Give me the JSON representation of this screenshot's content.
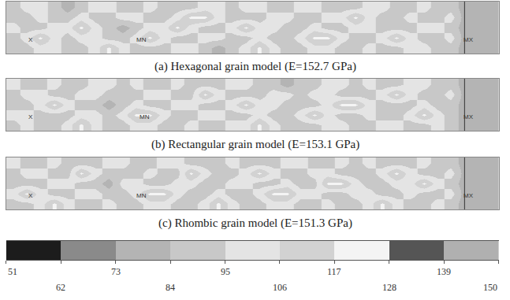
{
  "chart_data": [
    {
      "type": "heatmap",
      "title": "(a) Hexagonal grain model (E=152.7 GPa)",
      "xlim": [
        0,
        36
      ],
      "ylim": [
        0,
        5
      ],
      "tick_labels": false,
      "grid": false,
      "section_x": 33.5,
      "markers": [
        {
          "label": "X",
          "x": 1.8,
          "y": 1.3
        },
        {
          "label": "MN",
          "x": 9.9,
          "y": 1.3
        },
        {
          "label": "MX",
          "x": 33.8,
          "y": 1.3
        }
      ],
      "z": [
        [
          90,
          90,
          100,
          100,
          90,
          90,
          100,
          120,
          100,
          90,
          90,
          90,
          100,
          100,
          90,
          78,
          90,
          100,
          120,
          100,
          90,
          90,
          100,
          100,
          90,
          90,
          100,
          90,
          90,
          100,
          100,
          90,
          90,
          78,
          78,
          78
        ],
        [
          90,
          100,
          120,
          100,
          90,
          100,
          100,
          90,
          90,
          100,
          120,
          100,
          90,
          90,
          100,
          100,
          90,
          90,
          100,
          90,
          90,
          100,
          120,
          120,
          100,
          90,
          90,
          100,
          120,
          100,
          90,
          90,
          100,
          78,
          78,
          78
        ],
        [
          100,
          90,
          90,
          100,
          100,
          120,
          100,
          90,
          78,
          90,
          100,
          100,
          120,
          100,
          90,
          90,
          100,
          120,
          100,
          100,
          90,
          90,
          100,
          90,
          90,
          100,
          100,
          90,
          90,
          90,
          100,
          100,
          90,
          78,
          78,
          78
        ],
        [
          90,
          90,
          100,
          90,
          90,
          100,
          90,
          90,
          100,
          100,
          90,
          90,
          100,
          120,
          120,
          100,
          90,
          90,
          90,
          100,
          100,
          90,
          90,
          100,
          100,
          120,
          100,
          90,
          90,
          100,
          90,
          90,
          100,
          78,
          78,
          78
        ],
        [
          90,
          100,
          100,
          90,
          78,
          90,
          100,
          100,
          90,
          90,
          100,
          90,
          90,
          90,
          100,
          100,
          90,
          100,
          100,
          90,
          90,
          100,
          100,
          90,
          90,
          90,
          100,
          100,
          90,
          90,
          100,
          90,
          90,
          78,
          78,
          78
        ]
      ]
    },
    {
      "type": "heatmap",
      "title": "(b) Rectangular grain model (E=153.1 GPa)",
      "xlim": [
        0,
        36
      ],
      "ylim": [
        0,
        5
      ],
      "tick_labels": false,
      "grid": false,
      "section_x": 33.5,
      "markers": [
        {
          "label": "X",
          "x": 1.8,
          "y": 1.3
        },
        {
          "label": "MN",
          "x": 10.1,
          "y": 1.3
        },
        {
          "label": "MX",
          "x": 33.8,
          "y": 1.3
        }
      ],
      "z": [
        [
          90,
          100,
          90,
          90,
          100,
          120,
          100,
          90,
          90,
          100,
          100,
          90,
          90,
          100,
          90,
          90,
          100,
          100,
          120,
          100,
          90,
          90,
          90,
          100,
          100,
          90,
          90,
          100,
          100,
          90,
          90,
          100,
          90,
          78,
          78,
          78
        ],
        [
          100,
          100,
          90,
          90,
          90,
          100,
          100,
          90,
          100,
          120,
          120,
          100,
          90,
          90,
          100,
          100,
          90,
          90,
          100,
          90,
          90,
          100,
          120,
          100,
          90,
          90,
          100,
          90,
          90,
          100,
          120,
          100,
          90,
          78,
          78,
          78
        ],
        [
          90,
          90,
          100,
          120,
          100,
          90,
          90,
          78,
          90,
          100,
          90,
          90,
          100,
          100,
          90,
          90,
          100,
          120,
          100,
          100,
          90,
          90,
          90,
          100,
          120,
          120,
          100,
          90,
          90,
          90,
          100,
          90,
          90,
          78,
          78,
          78
        ],
        [
          90,
          100,
          100,
          90,
          90,
          100,
          100,
          90,
          90,
          90,
          100,
          100,
          90,
          90,
          120,
          100,
          90,
          90,
          90,
          100,
          100,
          90,
          100,
          100,
          90,
          90,
          90,
          100,
          120,
          100,
          90,
          90,
          100,
          78,
          78,
          78
        ],
        [
          100,
          90,
          90,
          100,
          90,
          90,
          100,
          100,
          90,
          100,
          90,
          90,
          100,
          90,
          90,
          90,
          100,
          100,
          90,
          90,
          78,
          90,
          90,
          100,
          100,
          90,
          100,
          90,
          90,
          100,
          100,
          90,
          90,
          78,
          78,
          78
        ]
      ]
    },
    {
      "type": "heatmap",
      "title": "(c) Rhombic grain model (E=151.3 GPa)",
      "xlim": [
        0,
        36
      ],
      "ylim": [
        0,
        5
      ],
      "tick_labels": false,
      "grid": false,
      "section_x": 33.5,
      "markers": [
        {
          "label": "X",
          "x": 1.8,
          "y": 1.3
        },
        {
          "label": "MN",
          "x": 9.9,
          "y": 1.3
        },
        {
          "label": "MX",
          "x": 33.8,
          "y": 1.3
        }
      ],
      "z": [
        [
          90,
          90,
          100,
          120,
          100,
          90,
          90,
          100,
          90,
          90,
          100,
          100,
          90,
          90,
          100,
          120,
          100,
          90,
          90,
          100,
          100,
          90,
          90,
          100,
          90,
          90,
          100,
          120,
          100,
          90,
          90,
          100,
          90,
          78,
          78,
          78
        ],
        [
          100,
          120,
          100,
          90,
          90,
          100,
          100,
          90,
          90,
          100,
          120,
          120,
          100,
          90,
          90,
          100,
          90,
          90,
          100,
          120,
          120,
          100,
          100,
          90,
          90,
          100,
          100,
          90,
          90,
          100,
          90,
          90,
          100,
          78,
          78,
          78
        ],
        [
          90,
          90,
          90,
          100,
          100,
          90,
          90,
          78,
          100,
          100,
          90,
          90,
          100,
          100,
          90,
          90,
          100,
          100,
          90,
          90,
          100,
          90,
          90,
          120,
          120,
          100,
          90,
          90,
          100,
          100,
          120,
          100,
          90,
          78,
          78,
          78
        ],
        [
          90,
          100,
          100,
          90,
          90,
          120,
          100,
          90,
          90,
          90,
          100,
          90,
          90,
          120,
          100,
          90,
          90,
          100,
          120,
          100,
          90,
          90,
          100,
          100,
          90,
          90,
          90,
          100,
          120,
          100,
          90,
          90,
          100,
          78,
          78,
          78
        ],
        [
          100,
          90,
          90,
          100,
          90,
          90,
          90,
          100,
          100,
          90,
          90,
          100,
          100,
          90,
          90,
          90,
          100,
          90,
          90,
          90,
          100,
          100,
          90,
          90,
          100,
          90,
          100,
          90,
          90,
          90,
          100,
          90,
          90,
          78,
          78,
          78
        ]
      ]
    }
  ],
  "colorbar": {
    "range": [
      51,
      150
    ],
    "ticks": [
      51,
      62,
      73,
      84,
      95,
      106,
      117,
      128,
      139,
      150
    ],
    "colors": [
      "#1c1c1c",
      "#8a8a8a",
      "#b4b4b4",
      "#c8c8c8",
      "#e4e4e4",
      "#d2d2d2",
      "#f4f4f4",
      "#555555",
      "#b0b0b0"
    ]
  }
}
